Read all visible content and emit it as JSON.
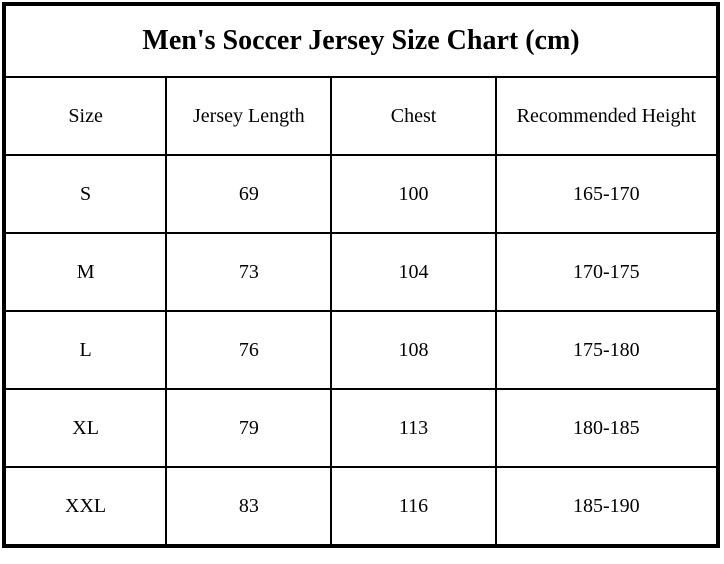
{
  "title": "Men's Soccer Jersey Size Chart (cm)",
  "chart_data": {
    "type": "table",
    "title": "Men's Soccer Jersey Size Chart (cm)",
    "unit": "cm",
    "columns": [
      "Size",
      "Jersey Length",
      "Chest",
      "Recommended Height"
    ],
    "rows": [
      [
        "S",
        "69",
        "100",
        "165-170"
      ],
      [
        "M",
        "73",
        "104",
        "170-175"
      ],
      [
        "L",
        "76",
        "108",
        "175-180"
      ],
      [
        "XL",
        "79",
        "113",
        "180-185"
      ],
      [
        "XXL",
        "83",
        "116",
        "185-190"
      ]
    ]
  },
  "colors": {
    "background": "#ffffff",
    "border": "#000000",
    "text": "#000000"
  }
}
